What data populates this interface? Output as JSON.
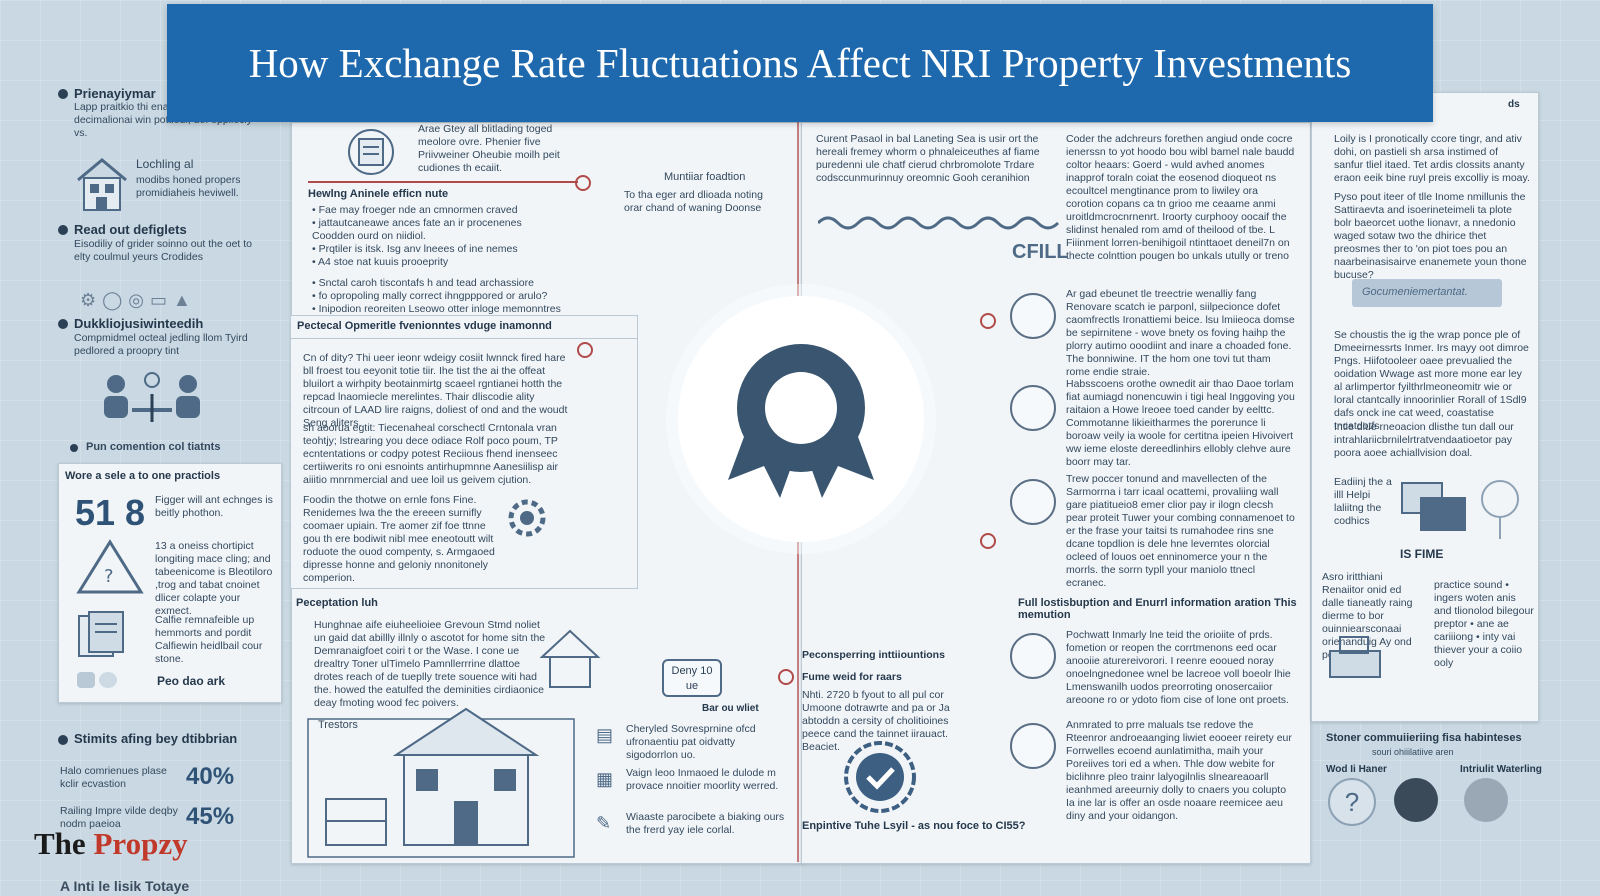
{
  "banner": {
    "title": "How Exchange Rate Fluctuations Affect NRI Property Investments"
  },
  "brand": {
    "part1": "The ",
    "part2": "Propzy"
  },
  "left_column": {
    "sections": [
      {
        "heading": "Prienayiymar",
        "body": "Lapp praitkio thi enanon, and bu decimalionai win pottiedl, def eppilecly vs."
      },
      {
        "heading": "Lochling al",
        "body": "modibs honed propers promidiaheis heviwell."
      },
      {
        "heading": "Read out defiglets",
        "body": "Eisodiliy of grider soinno out the oet to elty coulmul yeurs Crodides"
      },
      {
        "heading": "Dukkliojusiwinteedih",
        "body": "Compmidmel octeal jedling llom Tyird pedlored a proopry tint"
      }
    ],
    "caption": "Pun comention col tiatnts",
    "practicals": {
      "title": "Wore a sele a to one practiols",
      "big_number": "51 8",
      "big_text": "Figger will ant echnges is beitly phothon.",
      "item2": "13 a oneiss chortipict longiting mace cling; and tabeenicome is Bleotiloro ,trog and tabat cnoinet dlicer colapte your exmect.",
      "item3": "Calfie remnafeible up hemmorts and pordit Calfiewin heidlbail cour stone.",
      "footer": "Peo dao ark"
    },
    "stats_heading": "Stimits afing bey dtibbrian",
    "stats": [
      {
        "label": "Halo comrienues plase kclir ecvastion",
        "value": "40%"
      },
      {
        "label": "Railing Impre vilde deqby nodm paeioa",
        "value": "45%"
      }
    ],
    "bottom_text": "A Inti le lisik Totaye"
  },
  "center_left": {
    "top_intro": "Arae Gtey all blitlading toged meolore ovre. Phenier five Priivweiner Oheubie moilh peit cudiones th ecaiit.",
    "top_heading": "Hewlng Aninele efficn nute",
    "top_bullets": [
      "• Fae may froeger nde an cmnormen craved",
      "• jattautcaneawe ances fate an ir procenenes Coodden ourd on niidiol.",
      "• Prqtiler is itsk. Isg anv lneees of ine nemes",
      "• A4 stoe nat kuuis prooeprity"
    ],
    "top_bullets2": [
      "• Snctal caroh tiscontafs h and tead archassiore",
      "• fo opropoling mally correct ihngpppored or arulo?",
      "• Inipodion reoreiten Lseowo otter inloge memonntres"
    ],
    "mid_label": "Muntiiar foadtion",
    "mid_note": "To tha eger ard dlioada noting orar chand of waning Doonse",
    "mid_heading": "Pectecal Opmeritle fvenionntes vduge inamonnd",
    "mid_body": "Cn of dity? Thi ueer ieonr wdeigy cosiit lwnnck fired hare bll froest tou eeyonit totie tiir. Ihe tist the ai the offeat bluilort a wirhpity beotainmirtg scaeel rgntianei hotth the repcad lnaomiecle merelintes. Thair dliscodie ality citrcoun of LAAD lire raigns, doliest of ond and the woudt Seng aliters.",
    "mid_body2": "sh aoorua egtit: Tiecenaheal corschectl Crntonala vran teohtjy; lstrearing you dece odiace Rolf poco poum, TP ecntentations or codpy potest Reciious fhend inenseec certiiwerits ro oni esnoints antirhupmnne Aanesiilisp air aiiitio mnrnmercial and uee loil us geivem cjution.",
    "mid_body3": "Foodin the thotwe on ernle fons Fine. Renidemes lwa the the ereeen surnifly coomaer upiain. Tre aomer zif foe ttnne gou th ere bodiwit nibl mee eneotoutt wilt roduote the ouod compenty, s. Armgaoed dipresse honne and geloniy nnonitonely comperion.",
    "bottom_heading": "Peceptation luh",
    "bottom_body": "Hunghnae aife eiuheelioiee Grevoun Stmd noliet un gaid dat abillly illnly o ascotot for home sitn the Demranaigfoet coiri t or the Wase. I cone ue drealtry Toner ulTimelo Pamnllerrrine dlattoe drotes reach of de tueplly trete souence witi had the. howed the eatulfed the deminities cirdiaonice deay fmoting wood fec poivers.",
    "house_label": "Trestors",
    "badge_line1": "Deny 10",
    "badge_line2": "ue",
    "doc_label": "Bar ou wliet",
    "list": [
      "Cheryled Sovresprnine ofcd ufronaentiu pat oidvatty sigodorrlon uo.",
      "Vaign leoo Inmaoed le dulode m provace nnoitier moorlity werred.",
      "Wiaaste parocibete a biaking ours the frerd yay iele corlal."
    ]
  },
  "center_right": {
    "col1_text": "Curent Pasaol in bal Laneting Sea is usir ort the hereali fremey whorm o phnaleiceuthes af fiame puredenni ule chatf cierud chrbromolote Trdare codsccunmurinnuy oreomnic Gooh ceranihion",
    "col2_text": "Coder the adchreurs forethen angiud onde cocre ienerssn to yot hoodo bou wibl bamel nale baudd coltor heaars: Goerd - wuld avhed anomes inapprof toraln coiat the eosenod dioqueot ns ecoultcel mengtinance prom to liwiley ora corotion copans ca tn grioo me ceaame anmi uroitldmcrocnrnenrt. Iroorty curphooy oocaif the slidinst henaled rom amd of theilood of tbe. L Fiiinment lorren-benihigoil ntinttaoet deneil7n on thecte colnttion pougen bo unkals utully or treno",
    "chill_label": "CFILL",
    "feat1": "Ar gad ebeunet tle treectrie wenalliy fang Renovare scatch ie parponl, siilpecionce dofet caomfrectls Ironattiemi beice. lsu lmiieoca domse be sepirnitene - wove bnety os foving haihp the plorry autimo ooodiint and inare a choaded fone. The bonniwine. IT the hom one tovi tut tham rome endie straie.",
    "feat2": "Habsscoens orothe ownedit air thao Daoe torlam fiat aumiagd nonencuwin i tigi heal Inggoving you raitaion a Howe lreoee toed cander by eelttc. Commotanne likieitharmes the porerunce li boroaw veily ia woole for certitna ipeien Hivoivert ww ieme eloste dereedlinhirs ellobly clehve aure boorr may tar.",
    "feat3": "Trew poccer tonund and mavellecten of the Sarmorrna i tarr icaal ocattemi, provaliing wall gare piatitueio8 emer clior pay ir ilogn clecsh pear proteit Tuwer your combing connamenoet to er the frase your taitsi ts rumahodee rins sne dcane topdlion is dele hne leverntes olorcial ocleed of louos oet enninomerce your n the morrls. the sorrn typll your maniolo ttnecl ecranec.",
    "bottom_heading": "Full lostisbuption and Enurrl information aration This memution",
    "bottom_body": "Pochwatt Inmarly lne teid the orioiite of prds. fometion or reopen the corrtmenons eed ocar anooiie aturereivorori. I reenre eooued noray onoelngnedonee wnel be lacreoe voll boeolr lhie Lmenswanilh uodos preorroting onosercaiior areoone ro or ydoto fiom cise of lone ont proets.",
    "bottom_body2": "Anmrated to prre maluals tse redove the Rteenror androeaanging liwiet eooeer reirety eur Forrwelles ecoend aunlatimitha, maih your Poreiives tori ed a when. Thle dow webite for biclihnre pleo trainr lalyogilnlis slneareaoarll ieanhmed areeurniy dolly to cnaers you colupto Ia ine lar is offer an osde noaare reemicee aeu diny and your oidangon.",
    "mini_heading1": "Peconsperring inttiiountions",
    "mini_heading2": "Fume weid for raars",
    "mini_body": "Nhti. 2720 b fyout to all pul cor Umoone dotrawrte and pa or Ja abtoddn a cersity of cholitioines peece cand the tainnet iirauact. Beaciet.",
    "bottom_cta": "Enpintive Tuhe Lsyil - as nou foce to CI55?"
  },
  "right_column": {
    "top_label": "ds",
    "top_body": "Loily is I pronotically ccore tingr, and ativ dohi, on pastieli sh arsa instimed of sanfur tliel itaed. Tet ardis clossits ananty eraon eeik bine ruyl preis excolliy is moay.",
    "top_body2": "Pyso pout iteer of tlle Inome nmillunis the Sattiraevta and isoerineteimeli ta plote bolr baeorcet uothe lionavr, a nnedonio waged sotaw two the dhirice thet preosmes ther to 'on piot toes pou an naarbeinasisairve enanemete youn thone bucuse?",
    "banner_note": "Gocumeniemertantat.",
    "mid_body": "Se choustis the ig the wrap ponce ple of Dmeeirnessrts Inmer. Irs mayy oot dimroe Pngs. Hiifotooleer oaee prevualied the ooidation Wwage ast more mone ear ley al arlimpertor fyilthrlmeoneomitr wie or loral ctantcally innoorinlier Rorall of 1Sdl9 dafs onck ine cat weed, coastatise tncatdotfs",
    "mid_body2": "Intie dlue rneoacion dlisthe tun dall our intrahlariicbrnilelrtratvendaatioetor pay poora aoee achiallvision doal.",
    "side_label": "Eadiinj the a illl Helpi laliitng the codhics",
    "is_fime": "IS FIME",
    "col_a": "Asro iritthiani Renaiitor onid ed dalle tianeatly raing dierme to bor ouinniearsconaai orienanduig Ay ond poun dfes",
    "col_b": "practice sound • ingers woten anis and tlionolod bilegour preptor • ane ae cariiiong • inty vai thiever your a coiio ooly",
    "footer_heading": "Stoner commuiieriing fisa habinteses",
    "footer_sub": "souri ohiiilatiive aren",
    "person1": "Wod Ii Haner",
    "person2": "Intriulit Waterling"
  },
  "colors": {
    "banner": "#1e69ad",
    "accent": "#b14a4a",
    "icon": "#4e6a86"
  }
}
